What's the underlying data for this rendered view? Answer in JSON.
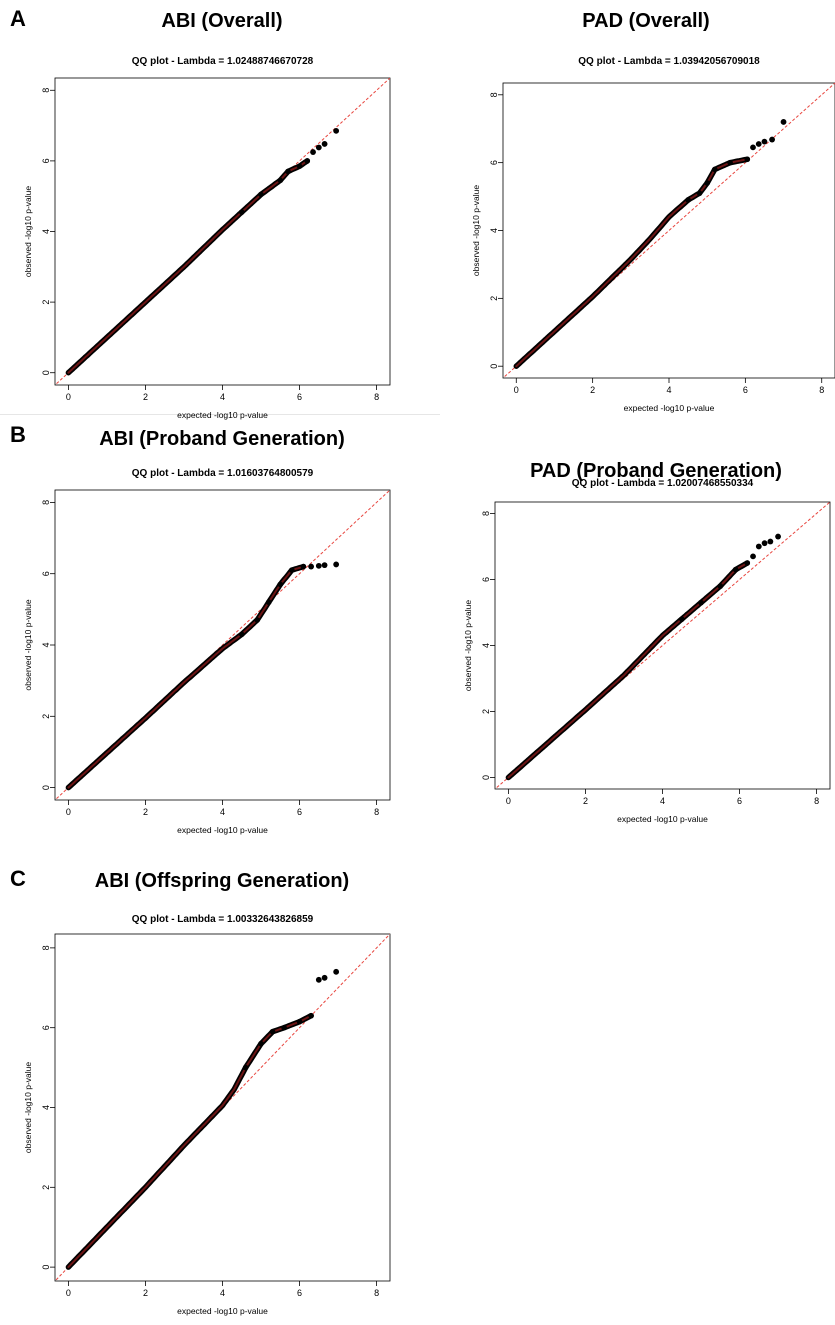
{
  "panels": {
    "A": "A",
    "B": "B",
    "C": "C"
  },
  "chart_data": [
    {
      "panel_title": "ABI (Overall)",
      "type": "scatter",
      "title": "QQ plot - Lambda = 1.02488746670728",
      "xlabel": "expected -log10 p-value",
      "ylabel": "observed -log10 p-value",
      "xlim": [
        0,
        8
      ],
      "ylim": [
        0,
        8
      ],
      "xticks": [
        0,
        2,
        4,
        6,
        8
      ],
      "yticks": [
        0,
        2,
        4,
        6,
        8
      ],
      "reference_line": "y = x",
      "colors": {
        "points": "#000000",
        "reference_line": "#e8463f",
        "dense_points": "#6b1414"
      },
      "curve": [
        [
          0,
          0
        ],
        [
          2.0,
          2.0
        ],
        [
          3.0,
          3.0
        ],
        [
          4.0,
          4.05
        ],
        [
          4.5,
          4.55
        ],
        [
          5.0,
          5.05
        ],
        [
          5.5,
          5.45
        ],
        [
          5.7,
          5.7
        ],
        [
          6.0,
          5.85
        ],
        [
          6.2,
          6.0
        ]
      ],
      "outliers": [
        [
          6.35,
          6.25
        ],
        [
          6.5,
          6.38
        ],
        [
          6.65,
          6.48
        ],
        [
          6.95,
          6.85
        ]
      ]
    },
    {
      "panel_title": "PAD (Overall)",
      "type": "scatter",
      "title": "QQ plot - Lambda = 1.03942056709018",
      "xlabel": "expected -log10 p-value",
      "ylabel": "observed -log10 p-value",
      "xlim": [
        0,
        8
      ],
      "ylim": [
        0,
        8
      ],
      "xticks": [
        0,
        2,
        4,
        6,
        8
      ],
      "yticks": [
        0,
        2,
        4,
        6,
        8
      ],
      "reference_line": "y = x",
      "colors": {
        "points": "#000000",
        "reference_line": "#e8463f",
        "dense_points": "#6b1414"
      },
      "curve": [
        [
          0,
          0
        ],
        [
          2.0,
          2.05
        ],
        [
          3.0,
          3.15
        ],
        [
          3.5,
          3.75
        ],
        [
          4.0,
          4.4
        ],
        [
          4.5,
          4.9
        ],
        [
          4.8,
          5.1
        ],
        [
          5.0,
          5.4
        ],
        [
          5.2,
          5.8
        ],
        [
          5.6,
          6.0
        ],
        [
          6.05,
          6.1
        ]
      ],
      "outliers": [
        [
          6.2,
          6.45
        ],
        [
          6.35,
          6.55
        ],
        [
          6.5,
          6.62
        ],
        [
          6.7,
          6.68
        ],
        [
          7.0,
          7.2
        ]
      ]
    },
    {
      "panel_title": "ABI (Proband Generation)",
      "type": "scatter",
      "title": "QQ plot - Lambda = 1.01603764800579",
      "xlabel": "expected -log10 p-value",
      "ylabel": "observed -log10 p-value",
      "xlim": [
        0,
        8
      ],
      "ylim": [
        0,
        8
      ],
      "xticks": [
        0,
        2,
        4,
        6,
        8
      ],
      "yticks": [
        0,
        2,
        4,
        6,
        8
      ],
      "reference_line": "y = x",
      "colors": {
        "points": "#000000",
        "reference_line": "#e8463f",
        "dense_points": "#6b1414"
      },
      "curve": [
        [
          0,
          0
        ],
        [
          2.0,
          1.95
        ],
        [
          3.0,
          2.95
        ],
        [
          4.0,
          3.9
        ],
        [
          4.5,
          4.3
        ],
        [
          4.9,
          4.7
        ],
        [
          5.2,
          5.2
        ],
        [
          5.5,
          5.7
        ],
        [
          5.8,
          6.1
        ],
        [
          6.1,
          6.2
        ]
      ],
      "outliers": [
        [
          6.3,
          6.2
        ],
        [
          6.5,
          6.22
        ],
        [
          6.65,
          6.24
        ],
        [
          6.95,
          6.26
        ]
      ]
    },
    {
      "panel_title": "PAD (Proband Generation)",
      "type": "scatter",
      "title": "QQ plot - Lambda = 1.02007468550334",
      "xlabel": "expected -log10 p-value",
      "ylabel": "observed -log10 p-value",
      "xlim": [
        0,
        8
      ],
      "ylim": [
        0,
        8
      ],
      "xticks": [
        0,
        2,
        4,
        6,
        8
      ],
      "yticks": [
        0,
        2,
        4,
        6,
        8
      ],
      "reference_line": "y = x",
      "colors": {
        "points": "#000000",
        "reference_line": "#e8463f",
        "dense_points": "#6b1414"
      },
      "curve": [
        [
          0,
          0
        ],
        [
          2.0,
          2.05
        ],
        [
          3.0,
          3.1
        ],
        [
          4.0,
          4.3
        ],
        [
          4.5,
          4.8
        ],
        [
          5.0,
          5.3
        ],
        [
          5.5,
          5.8
        ],
        [
          5.9,
          6.3
        ],
        [
          6.2,
          6.5
        ]
      ],
      "outliers": [
        [
          6.35,
          6.7
        ],
        [
          6.5,
          7.0
        ],
        [
          6.65,
          7.1
        ],
        [
          6.8,
          7.15
        ],
        [
          7.0,
          7.3
        ]
      ]
    },
    {
      "panel_title": "ABI (Offspring Generation)",
      "type": "scatter",
      "title": "QQ plot - Lambda = 1.00332643826859",
      "xlabel": "expected -log10 p-value",
      "ylabel": "observed -log10 p-value",
      "xlim": [
        0,
        8
      ],
      "ylim": [
        0,
        8
      ],
      "xticks": [
        0,
        2,
        4,
        6,
        8
      ],
      "yticks": [
        0,
        2,
        4,
        6,
        8
      ],
      "reference_line": "y = x",
      "colors": {
        "points": "#000000",
        "reference_line": "#e8463f",
        "dense_points": "#6b1414"
      },
      "curve": [
        [
          0,
          0
        ],
        [
          2.0,
          2.0
        ],
        [
          3.0,
          3.05
        ],
        [
          4.0,
          4.05
        ],
        [
          4.3,
          4.45
        ],
        [
          4.6,
          5.0
        ],
        [
          5.0,
          5.6
        ],
        [
          5.3,
          5.9
        ],
        [
          5.6,
          6.0
        ],
        [
          6.0,
          6.15
        ],
        [
          6.3,
          6.3
        ]
      ],
      "outliers": [
        [
          6.5,
          7.2
        ],
        [
          6.65,
          7.25
        ],
        [
          6.95,
          7.4
        ]
      ]
    }
  ]
}
